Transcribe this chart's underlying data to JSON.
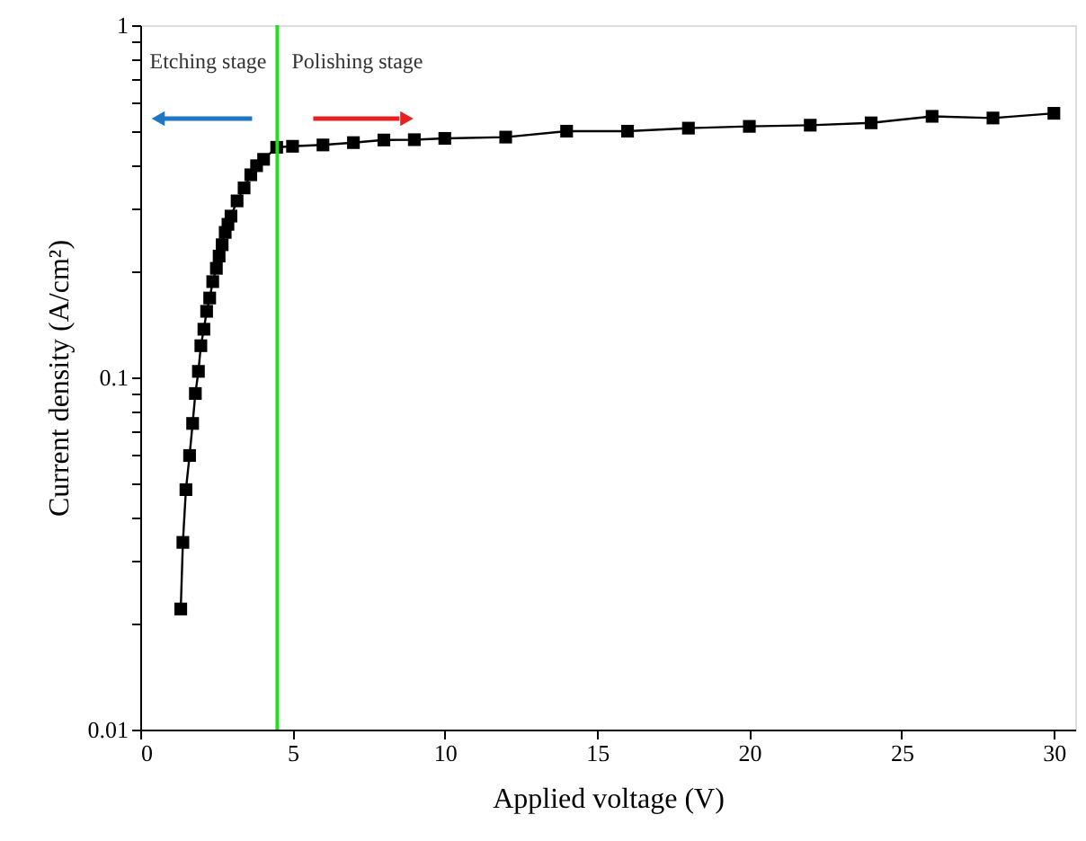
{
  "chart_data": {
    "type": "line",
    "xlabel": "Applied voltage (V)",
    "ylabel": "Current density (A/cm²)",
    "x": [
      1.33,
      1.4,
      1.5,
      1.62,
      1.72,
      1.81,
      1.91,
      1.99,
      2.09,
      2.18,
      2.28,
      2.38,
      2.5,
      2.59,
      2.69,
      2.79,
      2.88,
      2.98,
      3.18,
      3.41,
      3.63,
      3.82,
      4.05,
      4.48,
      5,
      6,
      7,
      8,
      9,
      10,
      12,
      14,
      16,
      18,
      20,
      22,
      24,
      26,
      28,
      30
    ],
    "series": [
      {
        "color": "#000000",
        "values": [
          0.022,
          0.034,
          0.048,
          0.06,
          0.074,
          0.09,
          0.104,
          0.123,
          0.137,
          0.154,
          0.168,
          0.187,
          0.204,
          0.221,
          0.238,
          0.258,
          0.272,
          0.287,
          0.317,
          0.345,
          0.376,
          0.399,
          0.416,
          0.45,
          0.453,
          0.457,
          0.464,
          0.472,
          0.473,
          0.477,
          0.481,
          0.5,
          0.5,
          0.51,
          0.516,
          0.52,
          0.528,
          0.551,
          0.545,
          0.562
        ]
      }
    ],
    "xlim": [
      0,
      30.7
    ],
    "xticks": [
      0,
      5,
      10,
      15,
      20,
      25,
      30
    ],
    "ylim": [
      0.01,
      1
    ],
    "log": true,
    "yticks": [
      0.01,
      {
        "value": 0.02,
        "label": null
      },
      {
        "value": 0.03,
        "label": null
      },
      {
        "value": 0.04,
        "label": null
      },
      {
        "value": 0.05,
        "label": null
      },
      {
        "value": 0.06,
        "label": null
      },
      {
        "value": 0.07,
        "label": null
      },
      {
        "value": 0.08,
        "label": null
      },
      {
        "value": 0.09,
        "label": null
      },
      0.1,
      {
        "value": 0.2,
        "label": null
      },
      {
        "value": 0.3,
        "label": null
      },
      {
        "value": 0.4,
        "label": null
      },
      {
        "value": 0.5,
        "label": null
      },
      {
        "value": 0.6,
        "label": null
      },
      {
        "value": 0.7,
        "label": null
      },
      {
        "value": 0.8,
        "label": null
      },
      {
        "value": 0.9,
        "label": null
      },
      1
    ],
    "ref_lines": [
      {
        "axis": "x",
        "value": 4.5,
        "color": "#22dd22"
      }
    ],
    "annotations": [
      "Etching stage",
      "Polishing stage"
    ],
    "marker": "square",
    "line_style": "solid",
    "grid": false
  }
}
